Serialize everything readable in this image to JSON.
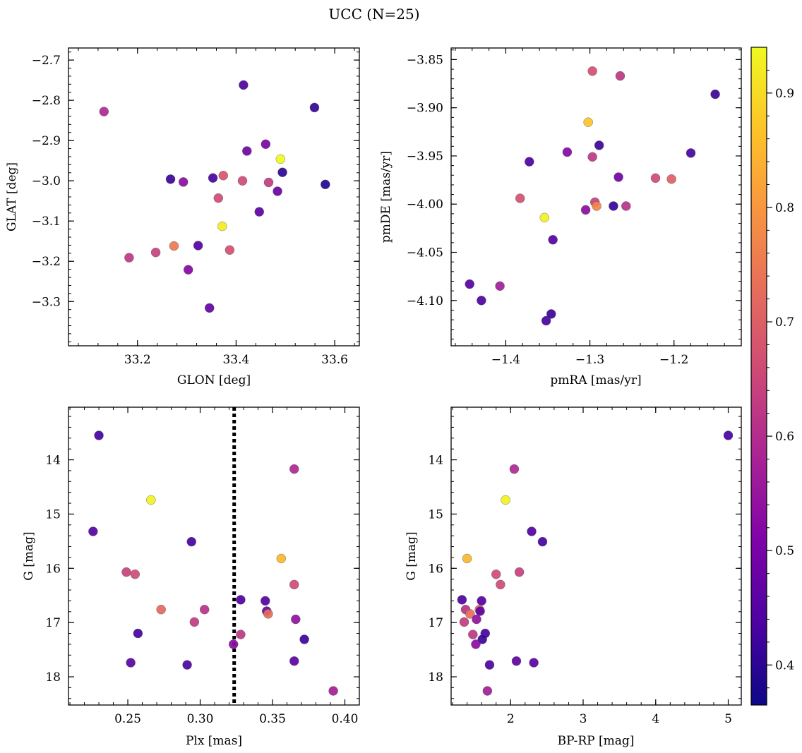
{
  "figure": {
    "title": "UCC (N=25)",
    "colorbar": {
      "ticks": [
        0.4,
        0.5,
        0.6,
        0.7,
        0.8,
        0.9
      ],
      "tick_labels": [
        "0.4",
        "0.5",
        "0.6",
        "0.7",
        "0.8",
        "0.9"
      ],
      "range": [
        0.365,
        0.94
      ],
      "colormap": "plasma"
    }
  },
  "chart_data": [
    {
      "type": "scatter",
      "id": "glon-glat",
      "xlabel": "GLON [deg]",
      "ylabel": "GLAT [deg]",
      "xlim": [
        33.06,
        33.65
      ],
      "ylim": [
        -3.41,
        -2.67
      ],
      "y_inverted": false,
      "xticks": [
        33.2,
        33.4,
        33.6
      ],
      "xtick_labels": [
        "33.2",
        "33.4",
        "33.6"
      ],
      "yticks": [
        -3.3,
        -3.2,
        -3.1,
        -3.0,
        -2.9,
        -2.8,
        -2.7
      ],
      "ytick_labels": [
        "−3.3",
        "−3.2",
        "−3.1",
        "−3.0",
        "−2.9",
        "−2.8",
        "−2.7"
      ],
      "points": [
        {
          "x": 33.132,
          "y": -2.828,
          "c": 0.59
        },
        {
          "x": 33.183,
          "y": -3.191,
          "c": 0.62
        },
        {
          "x": 33.237,
          "y": -3.178,
          "c": 0.64
        },
        {
          "x": 33.267,
          "y": -2.996,
          "c": 0.42
        },
        {
          "x": 33.274,
          "y": -3.162,
          "c": 0.75
        },
        {
          "x": 33.293,
          "y": -3.003,
          "c": 0.53
        },
        {
          "x": 33.303,
          "y": -3.221,
          "c": 0.52
        },
        {
          "x": 33.323,
          "y": -3.161,
          "c": 0.45
        },
        {
          "x": 33.346,
          "y": -3.316,
          "c": 0.47
        },
        {
          "x": 33.353,
          "y": -2.993,
          "c": 0.43
        },
        {
          "x": 33.364,
          "y": -3.043,
          "c": 0.66
        },
        {
          "x": 33.372,
          "y": -3.113,
          "c": 0.92
        },
        {
          "x": 33.374,
          "y": -2.987,
          "c": 0.68
        },
        {
          "x": 33.387,
          "y": -3.172,
          "c": 0.67
        },
        {
          "x": 33.413,
          "y": -3.0,
          "c": 0.66
        },
        {
          "x": 33.415,
          "y": -2.762,
          "c": 0.44
        },
        {
          "x": 33.422,
          "y": -2.926,
          "c": 0.49
        },
        {
          "x": 33.447,
          "y": -3.077,
          "c": 0.46
        },
        {
          "x": 33.46,
          "y": -2.909,
          "c": 0.5
        },
        {
          "x": 33.466,
          "y": -3.004,
          "c": 0.63
        },
        {
          "x": 33.484,
          "y": -3.026,
          "c": 0.48
        },
        {
          "x": 33.49,
          "y": -2.946,
          "c": 0.94
        },
        {
          "x": 33.494,
          "y": -2.979,
          "c": 0.4
        },
        {
          "x": 33.559,
          "y": -2.818,
          "c": 0.41
        },
        {
          "x": 33.581,
          "y": -3.009,
          "c": 0.39
        }
      ]
    },
    {
      "type": "scatter",
      "id": "pmra-pmde",
      "xlabel": "pmRA [mas/yr]",
      "ylabel": "pmDE [mas/yr]",
      "xlim": [
        -1.465,
        -1.12
      ],
      "ylim": [
        -4.147,
        -3.838
      ],
      "y_inverted": false,
      "xticks": [
        -1.4,
        -1.3,
        -1.2
      ],
      "xtick_labels": [
        "−1.4",
        "−1.3",
        "−1.2"
      ],
      "yticks": [
        -4.1,
        -4.05,
        -4.0,
        -3.95,
        -3.9,
        -3.85
      ],
      "ytick_labels": [
        "−4.10",
        "−4.05",
        "−4.00",
        "−3.95",
        "−3.90",
        "−3.85"
      ],
      "points": [
        {
          "x": -1.443,
          "y": -4.083,
          "c": 0.45
        },
        {
          "x": -1.429,
          "y": -4.1,
          "c": 0.44
        },
        {
          "x": -1.407,
          "y": -4.085,
          "c": 0.57
        },
        {
          "x": -1.383,
          "y": -3.994,
          "c": 0.67
        },
        {
          "x": -1.372,
          "y": -3.956,
          "c": 0.44
        },
        {
          "x": -1.354,
          "y": -4.014,
          "c": 0.93
        },
        {
          "x": -1.352,
          "y": -4.121,
          "c": 0.43
        },
        {
          "x": -1.346,
          "y": -4.114,
          "c": 0.42
        },
        {
          "x": -1.344,
          "y": -4.037,
          "c": 0.45
        },
        {
          "x": -1.327,
          "y": -3.946,
          "c": 0.52
        },
        {
          "x": -1.305,
          "y": -4.006,
          "c": 0.53
        },
        {
          "x": -1.302,
          "y": -3.915,
          "c": 0.87
        },
        {
          "x": -1.297,
          "y": -3.862,
          "c": 0.67
        },
        {
          "x": -1.297,
          "y": -3.951,
          "c": 0.62
        },
        {
          "x": -1.294,
          "y": -3.998,
          "c": 0.64
        },
        {
          "x": -1.292,
          "y": -4.002,
          "c": 0.77
        },
        {
          "x": -1.289,
          "y": -3.939,
          "c": 0.42
        },
        {
          "x": -1.272,
          "y": -4.002,
          "c": 0.41
        },
        {
          "x": -1.266,
          "y": -3.972,
          "c": 0.49
        },
        {
          "x": -1.264,
          "y": -3.867,
          "c": 0.62
        },
        {
          "x": -1.257,
          "y": -4.002,
          "c": 0.61
        },
        {
          "x": -1.222,
          "y": -3.973,
          "c": 0.66
        },
        {
          "x": -1.203,
          "y": -3.974,
          "c": 0.7
        },
        {
          "x": -1.18,
          "y": -3.947,
          "c": 0.43
        },
        {
          "x": -1.151,
          "y": -3.886,
          "c": 0.42
        }
      ]
    },
    {
      "type": "scatter",
      "id": "plx-g",
      "xlabel": "Plx [mas]",
      "ylabel": "G [mag]",
      "xlim": [
        0.209,
        0.41
      ],
      "ylim": [
        18.52,
        13.03
      ],
      "y_inverted": true,
      "xticks": [
        0.25,
        0.3,
        0.35,
        0.4
      ],
      "xtick_labels": [
        "0.25",
        "0.30",
        "0.35",
        "0.40"
      ],
      "yticks": [
        14,
        15,
        16,
        17,
        18
      ],
      "ytick_labels": [
        "14",
        "15",
        "16",
        "17",
        "18"
      ],
      "vline": {
        "x": 0.3235,
        "style": "dotted"
      },
      "points": [
        {
          "x": 0.23,
          "y": 13.55,
          "c": 0.43
        },
        {
          "x": 0.226,
          "y": 15.32,
          "c": 0.45
        },
        {
          "x": 0.249,
          "y": 16.07,
          "c": 0.64
        },
        {
          "x": 0.255,
          "y": 16.11,
          "c": 0.66
        },
        {
          "x": 0.252,
          "y": 17.74,
          "c": 0.46
        },
        {
          "x": 0.257,
          "y": 17.2,
          "c": 0.43
        },
        {
          "x": 0.266,
          "y": 14.74,
          "c": 0.93
        },
        {
          "x": 0.273,
          "y": 16.76,
          "c": 0.72
        },
        {
          "x": 0.291,
          "y": 17.78,
          "c": 0.44
        },
        {
          "x": 0.294,
          "y": 15.51,
          "c": 0.43
        },
        {
          "x": 0.296,
          "y": 16.99,
          "c": 0.63
        },
        {
          "x": 0.303,
          "y": 16.76,
          "c": 0.61
        },
        {
          "x": 0.323,
          "y": 17.4,
          "c": 0.53
        },
        {
          "x": 0.328,
          "y": 16.58,
          "c": 0.44
        },
        {
          "x": 0.328,
          "y": 17.22,
          "c": 0.62
        },
        {
          "x": 0.345,
          "y": 16.6,
          "c": 0.45
        },
        {
          "x": 0.346,
          "y": 16.79,
          "c": 0.47
        },
        {
          "x": 0.347,
          "y": 16.84,
          "c": 0.73
        },
        {
          "x": 0.356,
          "y": 15.82,
          "c": 0.85
        },
        {
          "x": 0.365,
          "y": 14.17,
          "c": 0.59
        },
        {
          "x": 0.365,
          "y": 16.3,
          "c": 0.66
        },
        {
          "x": 0.366,
          "y": 16.94,
          "c": 0.54
        },
        {
          "x": 0.365,
          "y": 17.71,
          "c": 0.46
        },
        {
          "x": 0.372,
          "y": 17.31,
          "c": 0.42
        },
        {
          "x": 0.392,
          "y": 18.26,
          "c": 0.57
        }
      ]
    },
    {
      "type": "scatter",
      "id": "bprp-g",
      "xlabel": "BP-RP [mag]",
      "ylabel": "G [mag]",
      "xlim": [
        1.18,
        5.18
      ],
      "ylim": [
        18.52,
        13.03
      ],
      "y_inverted": true,
      "xticks": [
        2,
        3,
        4,
        5
      ],
      "xtick_labels": [
        "2",
        "3",
        "4",
        "5"
      ],
      "yticks": [
        14,
        15,
        16,
        17,
        18
      ],
      "ytick_labels": [
        "14",
        "15",
        "16",
        "17",
        "18"
      ],
      "points": [
        {
          "x": 5.0,
          "y": 13.55,
          "c": 0.43
        },
        {
          "x": 2.05,
          "y": 14.17,
          "c": 0.59
        },
        {
          "x": 1.93,
          "y": 14.74,
          "c": 0.93
        },
        {
          "x": 2.29,
          "y": 15.32,
          "c": 0.45
        },
        {
          "x": 2.44,
          "y": 15.51,
          "c": 0.43
        },
        {
          "x": 1.4,
          "y": 15.82,
          "c": 0.85
        },
        {
          "x": 2.12,
          "y": 16.07,
          "c": 0.64
        },
        {
          "x": 1.8,
          "y": 16.11,
          "c": 0.66
        },
        {
          "x": 1.86,
          "y": 16.3,
          "c": 0.66
        },
        {
          "x": 1.33,
          "y": 16.58,
          "c": 0.44
        },
        {
          "x": 1.6,
          "y": 16.6,
          "c": 0.45
        },
        {
          "x": 1.38,
          "y": 16.76,
          "c": 0.61
        },
        {
          "x": 1.57,
          "y": 16.76,
          "c": 0.72
        },
        {
          "x": 1.58,
          "y": 16.79,
          "c": 0.47
        },
        {
          "x": 1.44,
          "y": 16.84,
          "c": 0.73
        },
        {
          "x": 1.53,
          "y": 16.94,
          "c": 0.54
        },
        {
          "x": 1.36,
          "y": 16.99,
          "c": 0.63
        },
        {
          "x": 1.65,
          "y": 17.2,
          "c": 0.43
        },
        {
          "x": 1.48,
          "y": 17.22,
          "c": 0.62
        },
        {
          "x": 1.61,
          "y": 17.31,
          "c": 0.42
        },
        {
          "x": 1.52,
          "y": 17.4,
          "c": 0.53
        },
        {
          "x": 2.08,
          "y": 17.71,
          "c": 0.46
        },
        {
          "x": 2.32,
          "y": 17.74,
          "c": 0.46
        },
        {
          "x": 1.71,
          "y": 17.78,
          "c": 0.44
        },
        {
          "x": 1.68,
          "y": 18.26,
          "c": 0.57
        }
      ]
    }
  ]
}
